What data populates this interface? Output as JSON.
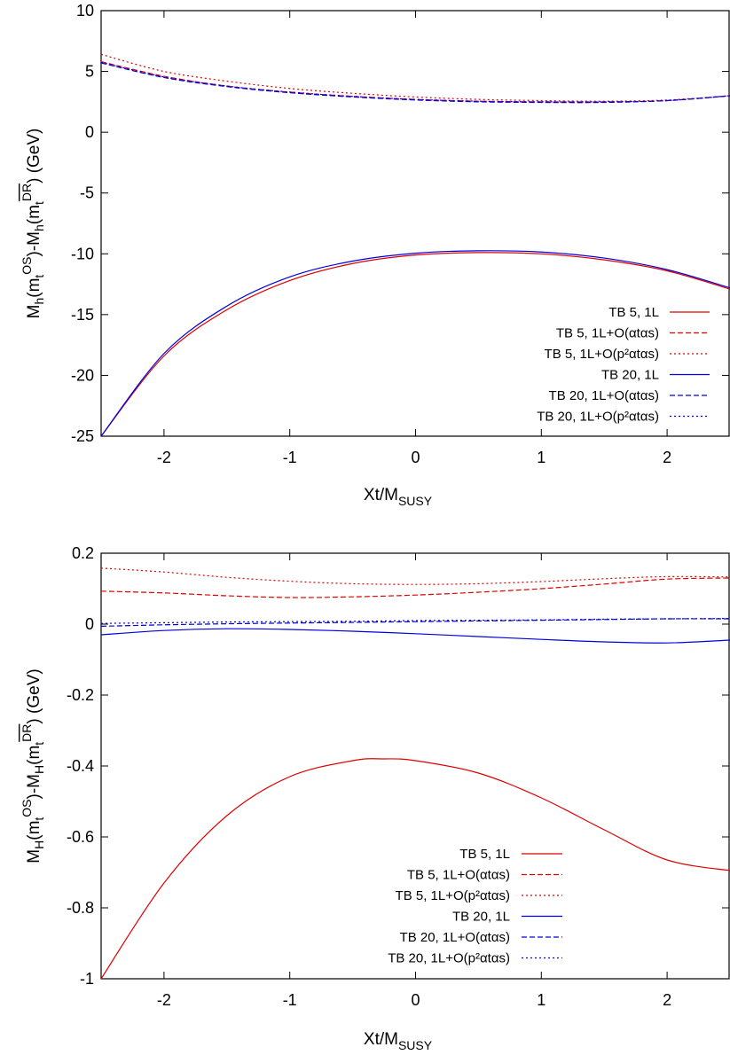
{
  "chart_data": [
    {
      "type": "line",
      "xlabel": {
        "main": "Xt/M",
        "sub": "SUSY"
      },
      "ylabel": {
        "p1": "M",
        "p2": "h",
        "p3": "(m",
        "p4": "t",
        "p5": "OS",
        "p6": ")-M",
        "p7": "h",
        "p8": "(m",
        "p9": "t",
        "p10": "DR",
        "p11": ") (GeV)"
      },
      "xlim": [
        -2.5,
        2.5
      ],
      "ylim": [
        -25,
        10
      ],
      "xticks": [
        -2,
        -1,
        0,
        1,
        2
      ],
      "xtick_labels": [
        "-2",
        "-1",
        "0",
        "1",
        "2"
      ],
      "yticks": [
        10,
        5,
        0,
        -5,
        -10,
        -15,
        -20,
        -25
      ],
      "ytick_labels": [
        "10",
        "5",
        "0",
        "-5",
        "-10",
        "-15",
        "-20",
        "-25"
      ],
      "legend_position": "bottom-right",
      "series": [
        {
          "name": "TB 5, 1L",
          "color": "#dd0000",
          "dash": "solid",
          "x": [
            -2.5,
            -2.0,
            -1.5,
            -1.0,
            -0.5,
            0.0,
            0.5,
            1.0,
            1.5,
            2.0,
            2.5
          ],
          "y": [
            -25.0,
            -18.4,
            -14.6,
            -12.2,
            -10.8,
            -10.1,
            -9.9,
            -10.0,
            -10.5,
            -11.4,
            -12.9
          ]
        },
        {
          "name": "TB 5, 1L+O(αtαs)",
          "color": "#dd0000",
          "dash": "dashed",
          "x": [
            -2.5,
            -2.0,
            -1.5,
            -1.0,
            -0.5,
            0.0,
            0.5,
            1.0,
            1.5,
            2.0,
            2.5
          ],
          "y": [
            5.8,
            4.6,
            3.8,
            3.3,
            2.95,
            2.7,
            2.55,
            2.5,
            2.5,
            2.6,
            3.0
          ]
        },
        {
          "name": "TB 5, 1L+O(p²αtαs)",
          "color": "#dd0000",
          "dash": "dotted",
          "x": [
            -2.5,
            -2.0,
            -1.5,
            -1.0,
            -0.5,
            0.0,
            0.5,
            1.0,
            1.5,
            2.0,
            2.5
          ],
          "y": [
            6.4,
            5.0,
            4.2,
            3.6,
            3.2,
            2.9,
            2.7,
            2.6,
            2.55,
            2.65,
            3.0
          ]
        },
        {
          "name": "TB 20, 1L",
          "color": "#0000dd",
          "dash": "solid",
          "x": [
            -2.5,
            -2.0,
            -1.5,
            -1.0,
            -0.5,
            0.0,
            0.5,
            1.0,
            1.5,
            2.0,
            2.5
          ],
          "y": [
            -25.0,
            -18.2,
            -14.3,
            -11.9,
            -10.6,
            -9.95,
            -9.75,
            -9.85,
            -10.35,
            -11.3,
            -12.8
          ]
        },
        {
          "name": "TB 20, 1L+O(αtαs)",
          "color": "#0000dd",
          "dash": "dashed",
          "x": [
            -2.5,
            -2.0,
            -1.5,
            -1.0,
            -0.5,
            0.0,
            0.5,
            1.0,
            1.5,
            2.0,
            2.5
          ],
          "y": [
            5.7,
            4.5,
            3.75,
            3.25,
            2.9,
            2.65,
            2.5,
            2.45,
            2.45,
            2.6,
            3.0
          ]
        },
        {
          "name": "TB 20, 1L+O(p²αtαs)",
          "color": "#0000dd",
          "dash": "dotted",
          "x": [
            -2.5,
            -2.0,
            -1.5,
            -1.0,
            -0.5,
            0.0,
            0.5,
            1.0,
            1.5,
            2.0,
            2.5
          ],
          "y": [
            5.75,
            4.55,
            3.8,
            3.3,
            2.95,
            2.7,
            2.55,
            2.5,
            2.5,
            2.6,
            3.0
          ]
        }
      ]
    },
    {
      "type": "line",
      "xlabel": {
        "main": "Xt/M",
        "sub": "SUSY"
      },
      "ylabel": {
        "p1": "M",
        "p2": "H",
        "p3": "(m",
        "p4": "t",
        "p5": "OS",
        "p6": ")-M",
        "p7": "H",
        "p8": "(m",
        "p9": "t",
        "p10": "DR",
        "p11": ") (GeV)"
      },
      "xlim": [
        -2.5,
        2.5
      ],
      "ylim": [
        -1,
        0.2
      ],
      "xticks": [
        -2,
        -1,
        0,
        1,
        2
      ],
      "xtick_labels": [
        "-2",
        "-1",
        "0",
        "1",
        "2"
      ],
      "yticks": [
        0.2,
        0,
        -0.2,
        -0.4,
        -0.6,
        -0.8,
        -1
      ],
      "ytick_labels": [
        "0.2",
        "0",
        "-0.2",
        "-0.4",
        "-0.6",
        "-0.8",
        "-1"
      ],
      "legend_position": "bottom-right",
      "series": [
        {
          "name": "TB 5, 1L",
          "color": "#dd0000",
          "dash": "solid",
          "x": [
            -2.5,
            -2.0,
            -1.5,
            -1.0,
            -0.5,
            -0.25,
            0.0,
            0.5,
            1.0,
            1.5,
            2.0,
            2.5
          ],
          "y": [
            -1.0,
            -0.73,
            -0.54,
            -0.43,
            -0.385,
            -0.38,
            -0.385,
            -0.42,
            -0.49,
            -0.58,
            -0.665,
            -0.695
          ]
        },
        {
          "name": "TB 5, 1L+O(αtαs)",
          "color": "#dd0000",
          "dash": "dashed",
          "x": [
            -2.5,
            -2.0,
            -1.5,
            -1.0,
            -0.5,
            0.0,
            0.5,
            1.0,
            1.5,
            2.0,
            2.5
          ],
          "y": [
            0.093,
            0.088,
            0.08,
            0.075,
            0.077,
            0.082,
            0.09,
            0.1,
            0.113,
            0.127,
            0.13
          ]
        },
        {
          "name": "TB 5, 1L+O(p²αtαs)",
          "color": "#dd0000",
          "dash": "dotted",
          "x": [
            -2.5,
            -2.0,
            -1.5,
            -1.0,
            -0.5,
            0.0,
            0.5,
            1.0,
            1.5,
            2.0,
            2.5
          ],
          "y": [
            0.158,
            0.147,
            0.132,
            0.121,
            0.114,
            0.112,
            0.114,
            0.12,
            0.128,
            0.134,
            0.133
          ]
        },
        {
          "name": "TB 20, 1L",
          "color": "#0000dd",
          "dash": "solid",
          "x": [
            -2.5,
            -2.0,
            -1.5,
            -1.0,
            -0.5,
            0.0,
            0.5,
            1.0,
            1.5,
            2.0,
            2.5
          ],
          "y": [
            -0.03,
            -0.018,
            -0.013,
            -0.015,
            -0.02,
            -0.027,
            -0.035,
            -0.043,
            -0.05,
            -0.053,
            -0.045
          ]
        },
        {
          "name": "TB 20, 1L+O(αtαs)",
          "color": "#0000dd",
          "dash": "dashed",
          "x": [
            -2.5,
            -2.0,
            -1.5,
            -1.0,
            -0.5,
            0.0,
            0.5,
            1.0,
            1.5,
            2.0,
            2.5
          ],
          "y": [
            -0.006,
            -0.002,
            0.001,
            0.003,
            0.005,
            0.007,
            0.009,
            0.011,
            0.013,
            0.015,
            0.015
          ]
        },
        {
          "name": "TB 20, 1L+O(p²αtαs)",
          "color": "#0000dd",
          "dash": "dotted",
          "x": [
            -2.5,
            -2.0,
            -1.5,
            -1.0,
            -0.5,
            0.0,
            0.5,
            1.0,
            1.5,
            2.0,
            2.5
          ],
          "y": [
            0.002,
            0.004,
            0.006,
            0.007,
            0.008,
            0.01,
            0.011,
            0.012,
            0.014,
            0.015,
            0.016
          ]
        }
      ]
    }
  ]
}
